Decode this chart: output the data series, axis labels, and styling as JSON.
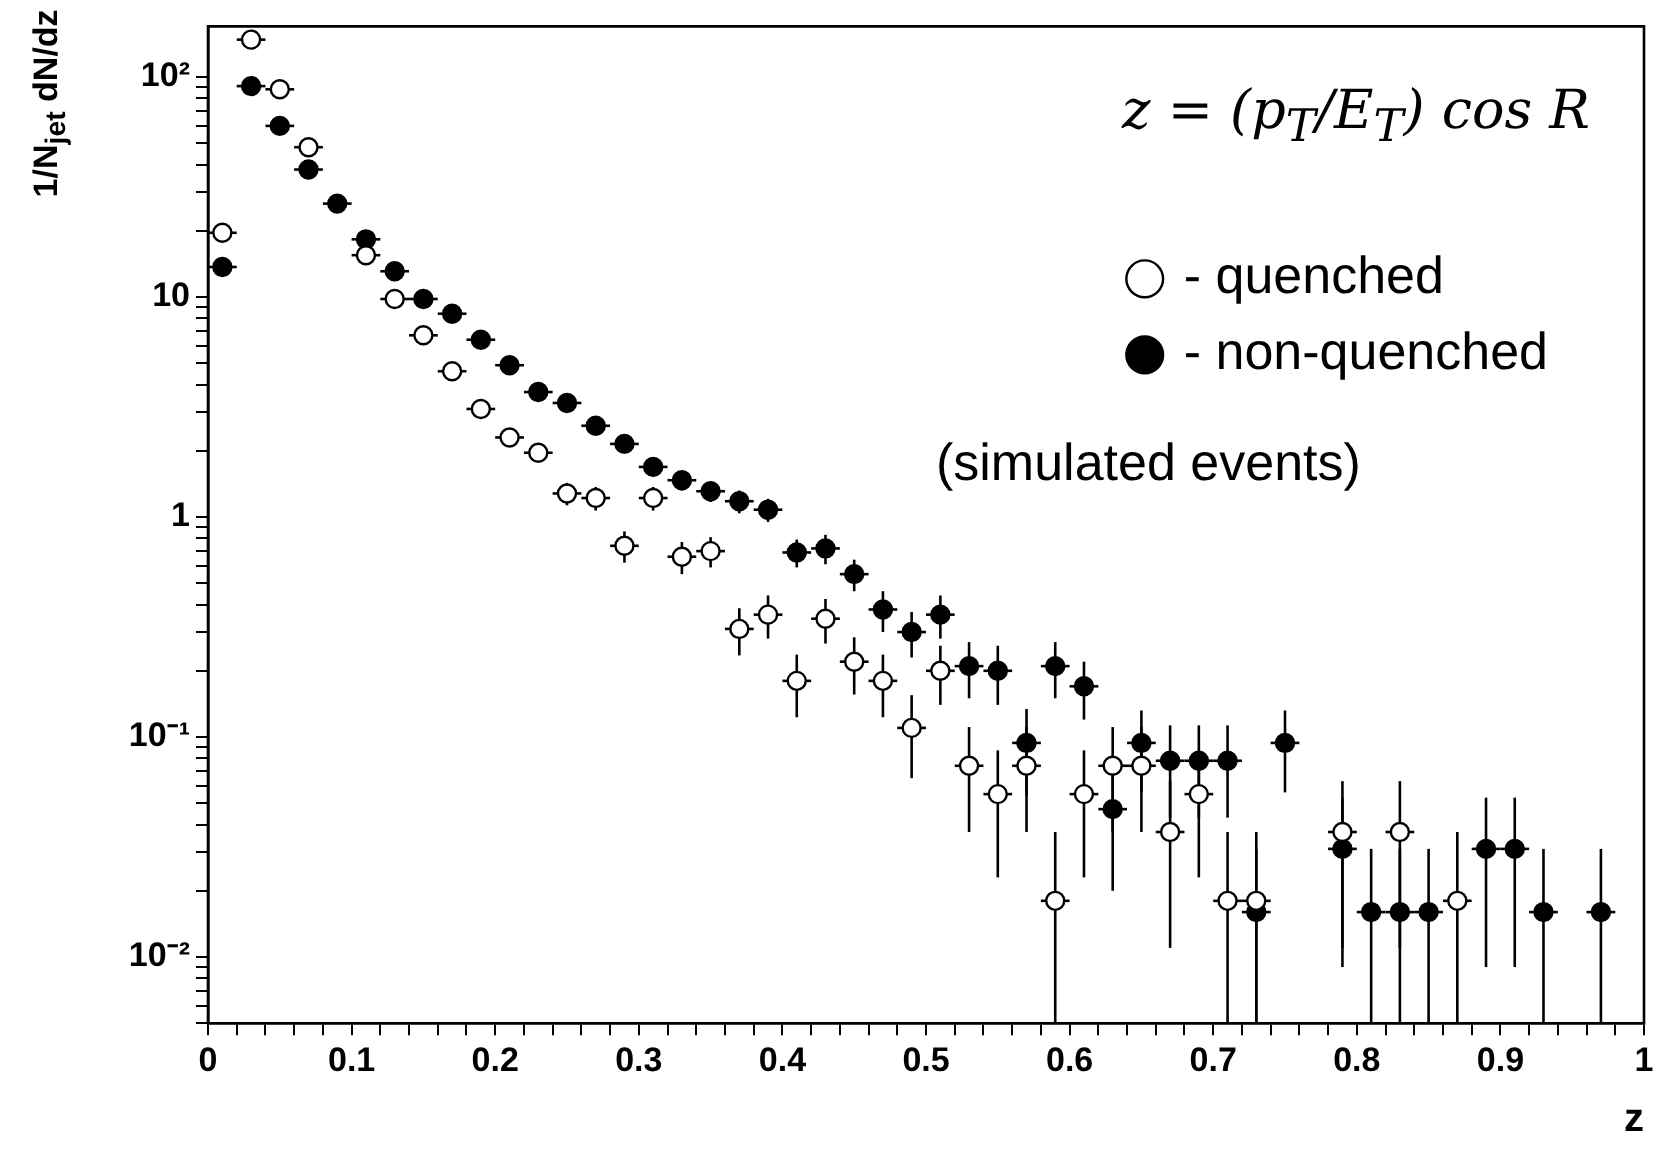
{
  "chart_data": {
    "type": "scatter",
    "xlabel": "z",
    "ylabel": "1/N$_{jet}$ dN/dz",
    "annotations": [
      "z = (p$_{T}$/E$_{T}$) cos R",
      "(simulated events)"
    ],
    "log": "y",
    "grid": false,
    "legend": "top right",
    "marker": "circle",
    "xlim": [
      0,
      1
    ],
    "xticks": [
      0,
      {
        "value": 0.02,
        "label": null
      },
      {
        "value": 0.04,
        "label": null
      },
      {
        "value": 0.06,
        "label": null
      },
      {
        "value": 0.08,
        "label": null
      },
      0.1,
      {
        "value": 0.12,
        "label": null
      },
      {
        "value": 0.14,
        "label": null
      },
      {
        "value": 0.16,
        "label": null
      },
      {
        "value": 0.18,
        "label": null
      },
      0.2,
      {
        "value": 0.22,
        "label": null
      },
      {
        "value": 0.24,
        "label": null
      },
      {
        "value": 0.26,
        "label": null
      },
      {
        "value": 0.28,
        "label": null
      },
      0.3,
      {
        "value": 0.32,
        "label": null
      },
      {
        "value": 0.34,
        "label": null
      },
      {
        "value": 0.36,
        "label": null
      },
      {
        "value": 0.38,
        "label": null
      },
      0.4,
      {
        "value": 0.42,
        "label": null
      },
      {
        "value": 0.44,
        "label": null
      },
      {
        "value": 0.46,
        "label": null
      },
      {
        "value": 0.48,
        "label": null
      },
      0.5,
      {
        "value": 0.52,
        "label": null
      },
      {
        "value": 0.54,
        "label": null
      },
      {
        "value": 0.56,
        "label": null
      },
      {
        "value": 0.58,
        "label": null
      },
      0.6,
      {
        "value": 0.62,
        "label": null
      },
      {
        "value": 0.64,
        "label": null
      },
      {
        "value": 0.66,
        "label": null
      },
      {
        "value": 0.68,
        "label": null
      },
      0.7,
      {
        "value": 0.72,
        "label": null
      },
      {
        "value": 0.74,
        "label": null
      },
      {
        "value": 0.76,
        "label": null
      },
      {
        "value": 0.78,
        "label": null
      },
      0.8,
      {
        "value": 0.82,
        "label": null
      },
      {
        "value": 0.84,
        "label": null
      },
      {
        "value": 0.86,
        "label": null
      },
      {
        "value": 0.88,
        "label": null
      },
      0.9,
      {
        "value": 0.92,
        "label": null
      },
      {
        "value": 0.94,
        "label": null
      },
      {
        "value": 0.96,
        "label": null
      },
      {
        "value": 0.98,
        "label": null
      },
      1
    ],
    "ylim": [
      0.005,
      170
    ],
    "yticks": [
      {
        "value": 0.005,
        "label": null
      },
      {
        "value": 0.006,
        "label": null
      },
      {
        "value": 0.007,
        "label": null
      },
      {
        "value": 0.008,
        "label": null
      },
      {
        "value": 0.009,
        "label": null
      },
      {
        "value": 0.01,
        "label": "10⁻²"
      },
      {
        "value": 0.02,
        "label": null
      },
      {
        "value": 0.03,
        "label": null
      },
      {
        "value": 0.04,
        "label": null
      },
      {
        "value": 0.05,
        "label": null
      },
      {
        "value": 0.06,
        "label": null
      },
      {
        "value": 0.07,
        "label": null
      },
      {
        "value": 0.08,
        "label": null
      },
      {
        "value": 0.09,
        "label": null
      },
      {
        "value": 0.1,
        "label": "10⁻¹"
      },
      {
        "value": 0.2,
        "label": null
      },
      {
        "value": 0.3,
        "label": null
      },
      {
        "value": 0.4,
        "label": null
      },
      {
        "value": 0.5,
        "label": null
      },
      {
        "value": 0.6,
        "label": null
      },
      {
        "value": 0.7,
        "label": null
      },
      {
        "value": 0.8,
        "label": null
      },
      {
        "value": 0.9,
        "label": null
      },
      1,
      {
        "value": 2,
        "label": null
      },
      {
        "value": 3,
        "label": null
      },
      {
        "value": 4,
        "label": null
      },
      {
        "value": 5,
        "label": null
      },
      {
        "value": 6,
        "label": null
      },
      {
        "value": 7,
        "label": null
      },
      {
        "value": 8,
        "label": null
      },
      {
        "value": 9,
        "label": null
      },
      10,
      {
        "value": 20,
        "label": null
      },
      {
        "value": 30,
        "label": null
      },
      {
        "value": 40,
        "label": null
      },
      {
        "value": 50,
        "label": null
      },
      {
        "value": 60,
        "label": null
      },
      {
        "value": 70,
        "label": null
      },
      {
        "value": 80,
        "label": null
      },
      {
        "value": 90,
        "label": null
      },
      {
        "value": 100,
        "label": "10²"
      }
    ],
    "series": [
      {
        "name": "- quenched",
        "color": "#ffffff",
        "x": [
          0.01,
          0.03,
          0.05,
          0.07,
          0.09,
          0.11,
          0.13,
          0.15,
          0.17,
          0.19,
          0.21,
          0.23,
          0.25,
          0.27,
          0.29,
          0.31,
          0.33,
          0.35,
          0.37,
          0.39,
          0.41,
          0.43,
          0.45,
          0.47,
          0.49,
          0.51,
          0.53,
          0.55,
          0.57,
          0.59,
          0.61,
          0.63,
          0.65,
          0.67,
          0.69,
          0.71,
          0.73,
          0.79,
          0.83,
          0.87
        ],
        "values": [
          19.6,
          148,
          88,
          48,
          null,
          15.5,
          9.8,
          6.7,
          4.6,
          3.1,
          2.3,
          1.96,
          1.28,
          1.22,
          0.74,
          1.22,
          0.66,
          0.7,
          0.31,
          0.36,
          0.18,
          0.345,
          0.22,
          0.18,
          0.11,
          0.2,
          0.074,
          0.055,
          0.074,
          0.018,
          0.055,
          0.074,
          0.074,
          0.037,
          0.055,
          0.018,
          0.018,
          0.037,
          0.037,
          0.018
        ],
        "errors": [
          null,
          null,
          null,
          null,
          null,
          null,
          null,
          null,
          null,
          null,
          null,
          null,
          0.15,
          0.15,
          0.12,
          0.15,
          0.11,
          0.11,
          0.075,
          0.08,
          0.057,
          0.079,
          0.064,
          0.057,
          0.045,
          0.06,
          0.037,
          0.032,
          0.037,
          [
            0.005,
            0.037
          ],
          0.032,
          0.037,
          0.037,
          0.026,
          0.032,
          [
            0.005,
            0.037
          ],
          [
            0.005,
            0.037
          ],
          0.026,
          0.026,
          [
            0.005,
            0.037
          ]
        ],
        "xerrors": [
          0.01,
          0.01,
          0.01,
          0.01,
          null,
          0.01,
          0.01,
          0.01,
          0.01,
          0.01,
          0.01,
          0.01,
          0.01,
          0.01,
          0.01,
          0.01,
          0.01,
          0.01,
          0.01,
          0.01,
          0.01,
          0.01,
          0.01,
          0.01,
          0.01,
          0.01,
          0.01,
          0.01,
          0.01,
          0.01,
          0.01,
          0.01,
          0.01,
          0.01,
          0.01,
          0.01,
          0.01,
          0.01,
          0.01,
          0.01
        ]
      },
      {
        "name": "- non-quenched",
        "color": "#000000",
        "x": [
          0.01,
          0.03,
          0.05,
          0.07,
          0.09,
          0.11,
          0.13,
          0.15,
          0.17,
          0.19,
          0.21,
          0.23,
          0.25,
          0.27,
          0.29,
          0.31,
          0.33,
          0.35,
          0.37,
          0.39,
          0.41,
          0.43,
          0.45,
          0.47,
          0.49,
          0.51,
          0.53,
          0.55,
          0.57,
          0.59,
          0.61,
          0.63,
          0.65,
          0.67,
          0.69,
          0.71,
          0.73,
          0.75,
          0.79,
          0.81,
          0.83,
          0.85,
          0.89,
          0.91,
          0.93,
          0.97
        ],
        "values": [
          13.7,
          91,
          60,
          38,
          26.6,
          18.3,
          13.1,
          9.8,
          8.4,
          6.4,
          4.9,
          3.7,
          3.3,
          2.6,
          2.15,
          1.69,
          1.47,
          1.31,
          1.18,
          1.08,
          0.69,
          0.72,
          0.55,
          0.38,
          0.3,
          0.36,
          0.21,
          0.2,
          0.094,
          0.21,
          0.17,
          0.047,
          0.094,
          0.078,
          0.078,
          0.078,
          0.016,
          0.094,
          0.031,
          0.016,
          0.016,
          0.016,
          0.031,
          0.031,
          0.016,
          0.016
        ],
        "errors": [
          null,
          null,
          null,
          null,
          null,
          null,
          null,
          null,
          null,
          null,
          null,
          null,
          0.23,
          0.2,
          0.18,
          0.16,
          0.15,
          0.14,
          0.14,
          0.13,
          0.1,
          0.11,
          0.09,
          0.08,
          0.07,
          0.08,
          0.06,
          0.06,
          0.04,
          0.06,
          0.05,
          0.027,
          0.038,
          0.035,
          0.035,
          0.035,
          [
            0.005,
            0.031
          ],
          0.038,
          0.022,
          [
            0.005,
            0.031
          ],
          [
            0.005,
            0.031
          ],
          [
            0.005,
            0.031
          ],
          0.022,
          0.022,
          [
            0.005,
            0.031
          ],
          [
            0.005,
            0.031
          ]
        ],
        "xerrors": [
          0.01,
          0.01,
          0.01,
          0.01,
          0.01,
          0.01,
          0.01,
          0.01,
          0.01,
          0.01,
          0.01,
          0.01,
          0.01,
          0.01,
          0.01,
          0.01,
          0.01,
          0.01,
          0.01,
          0.01,
          0.01,
          0.01,
          0.01,
          0.01,
          0.01,
          0.01,
          0.01,
          0.01,
          0.01,
          0.01,
          0.01,
          0.01,
          0.01,
          0.01,
          0.01,
          0.01,
          0.01,
          0.01,
          0.01,
          0.01,
          0.01,
          0.01,
          0.01,
          0.01,
          0.01,
          0.01
        ]
      }
    ]
  }
}
